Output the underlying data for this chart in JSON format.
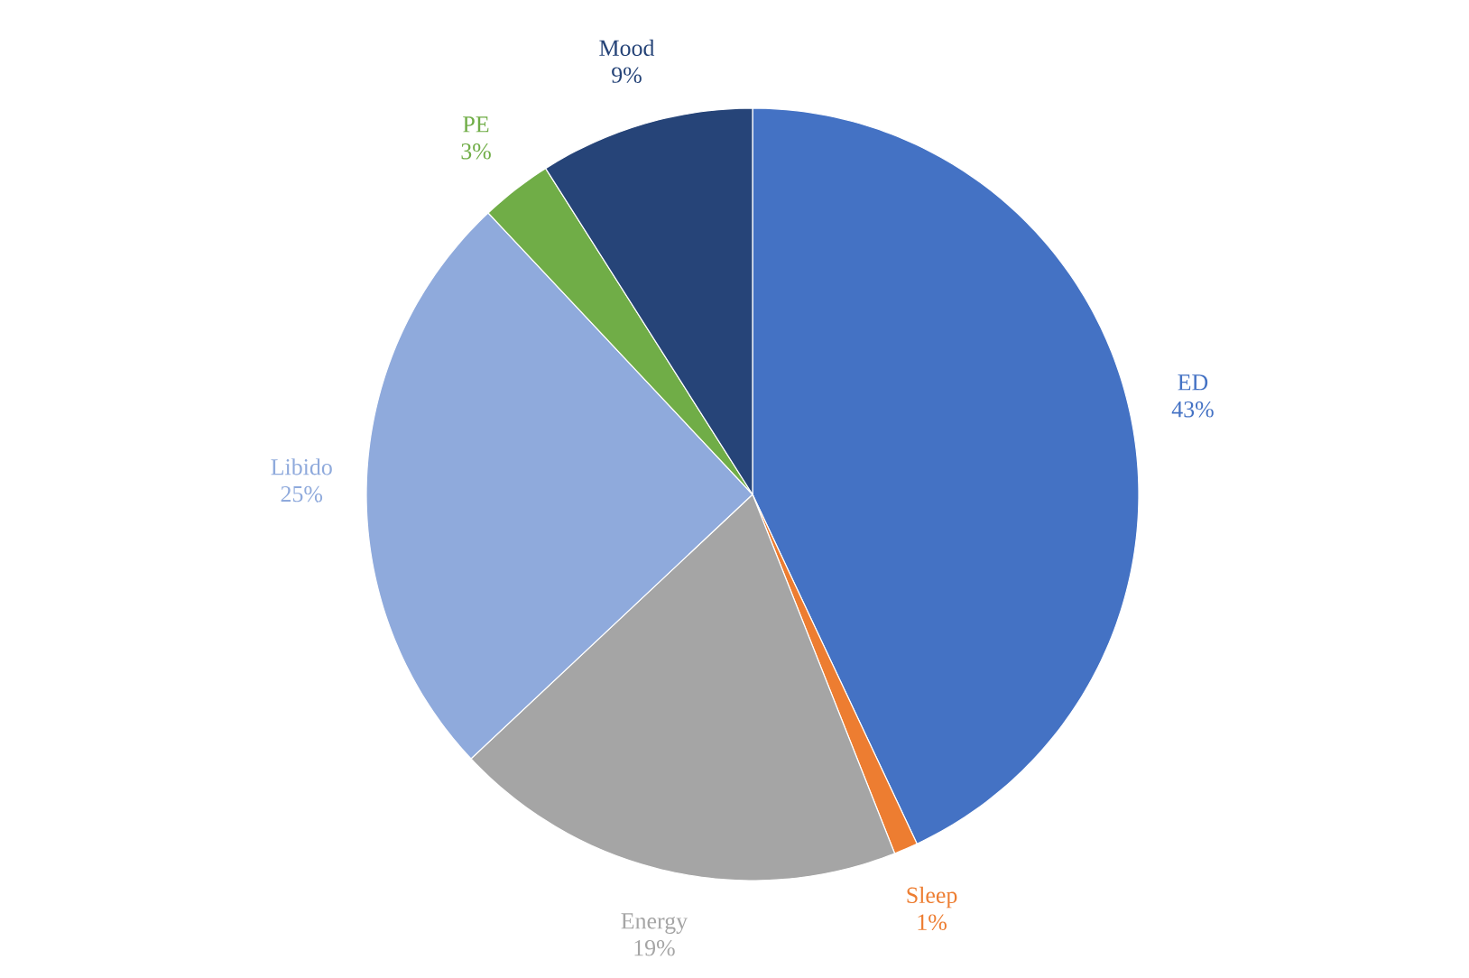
{
  "chart_data": {
    "type": "pie",
    "categories": [
      "ED",
      "Sleep",
      "Energy",
      "Libido",
      "PE",
      "Mood"
    ],
    "values": [
      43,
      1,
      19,
      25,
      3,
      9
    ],
    "value_labels": [
      "43%",
      "1%",
      "19%",
      "25%",
      "3%",
      "9%"
    ],
    "colors": [
      "#4472c4",
      "#ed7d31",
      "#a5a5a5",
      "#8faadc",
      "#70ad47",
      "#264478"
    ]
  }
}
